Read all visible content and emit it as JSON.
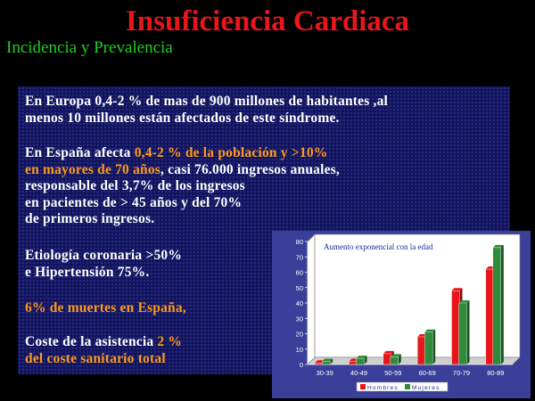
{
  "slide": {
    "title": "Insuficiencia Cardiaca",
    "subtitle": "Incidencia y Prevalencia"
  },
  "text": {
    "p1": {
      "line1": "En Europa 0,4-2 %  de mas de 900 millones de habitantes ,al",
      "line2": "menos 10 millones están afectados de este síndrome."
    },
    "p2": {
      "line1_a": "En España afecta ",
      "line1_b": "0,4-2 %  de la población y >10%",
      "line2_a": "en mayores de 70 años",
      "line2_b": ", casi 76.000 ingresos anuales,",
      "line3": "responsable del 3,7% de los ingresos",
      "line4": "en pacientes de > 45 años  y del 70%",
      "line5": "de primeros ingresos."
    },
    "p3": {
      "line1": "Etiología coronaria >50%",
      "line2": "e Hipertensión 75%."
    },
    "p4": "6% de muertes en España,",
    "p5": {
      "line1_a": "Coste de la asistencia ",
      "line1_b": "2 %",
      "line2": "del coste sanitario  total"
    }
  },
  "colors": {
    "title": "#e8161a",
    "subtitle": "#22cc22",
    "highlight": "#ff9a1a",
    "hombres": "#e8161a",
    "mujeres": "#2e8b3c"
  },
  "chart_data": {
    "type": "bar",
    "title": "Aumento exponencial con la edad",
    "categories": [
      "30-39",
      "40-49",
      "50-59",
      "60-69",
      "70-79",
      "80-89"
    ],
    "series": [
      {
        "name": "Hombres",
        "values": [
          1,
          2,
          7,
          18,
          48,
          62
        ]
      },
      {
        "name": "Mujeres",
        "values": [
          2,
          4,
          5,
          21,
          40,
          76
        ]
      }
    ],
    "ylim": [
      0,
      80
    ],
    "yticks": [
      "0",
      "10",
      "20",
      "30",
      "40",
      "50",
      "60",
      "70",
      "80"
    ],
    "grid": false,
    "legend_position": "bottom-right"
  }
}
